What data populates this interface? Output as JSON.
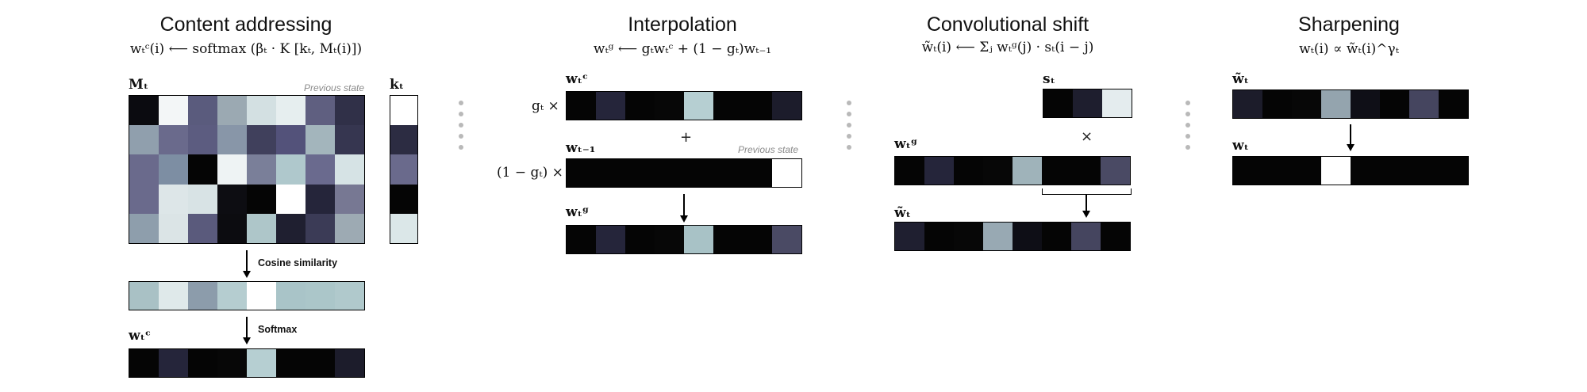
{
  "panels": {
    "content": {
      "title": "Content addressing",
      "formula": "wₜᶜ(i) ⟵ softmax (βₜ · K [kₜ, Mₜ(i)])",
      "memory_label": "Mₜ",
      "key_label": "kₜ",
      "previous_state": "Previous state",
      "cosine_label": "Cosine similarity",
      "softmax_label": "Softmax",
      "output_label": "wₜᶜ",
      "memory_matrix": [
        [
          "#0b0b10",
          "#f3f6f7",
          "#5a5b7d",
          "#9ba9b2",
          "#d3e0e2",
          "#e6eeef",
          "#5f5f80",
          "#303048"
        ],
        [
          "#909fad",
          "#6a6a8c",
          "#5c5c80",
          "#8896a8",
          "#40405c",
          "#53527a",
          "#a3b5bc",
          "#363650"
        ],
        [
          "#6a6a8c",
          "#7d8ea3",
          "#050505",
          "#eef3f4",
          "#7a7f99",
          "#afc8cc",
          "#6a6a8e",
          "#d6e3e5"
        ],
        [
          "#6a6a8c",
          "#dde6e8",
          "#d8e3e5",
          "#0d0d12",
          "#050505",
          "#ffffff",
          "#25253a",
          "#777893"
        ],
        [
          "#8e9eac",
          "#dbe4e6",
          "#5a5a7c",
          "#0c0c10",
          "#aec6c9",
          "#1f1f30",
          "#3b3b56",
          "#9daab3"
        ]
      ],
      "key_vector": [
        "#ffffff",
        "#2c2c42",
        "#6a6a8c",
        "#050505",
        "#dbe7e8"
      ],
      "cosine_strip": [
        "#a9c1c5",
        "#dfe9ea",
        "#8c9cab",
        "#b5cdd0",
        "#ffffff",
        "#a9c4c8",
        "#abc6c9",
        "#b0c9cc"
      ],
      "softmax_strip": [
        "#050505",
        "#25253a",
        "#050505",
        "#070707",
        "#b6cfd2",
        "#050505",
        "#050505",
        "#1c1c2b"
      ]
    },
    "interpolation": {
      "title": "Interpolation",
      "formula": "wₜᵍ ⟵ gₜwₜᶜ + (1 − gₜ)wₜ₋₁",
      "wc_label": "wₜᶜ",
      "gt_label": "gₜ ×",
      "plus": "+",
      "wprev_label": "wₜ₋₁",
      "one_minus_gt_label": "(1 − gₜ) ×",
      "previous_state": "Previous state",
      "wg_label": "wₜᵍ",
      "wc_strip": [
        "#050505",
        "#25253a",
        "#050505",
        "#070707",
        "#b6cfd2",
        "#050505",
        "#050505",
        "#1c1c2b"
      ],
      "prev_strip": [
        "#050505",
        "#050505",
        "#050505",
        "#050505",
        "#050505",
        "#050505",
        "#050505",
        "#ffffff"
      ],
      "wg_strip": [
        "#050505",
        "#25253a",
        "#050505",
        "#070707",
        "#a8c2c6",
        "#050505",
        "#050505",
        "#4a4a64"
      ]
    },
    "shift": {
      "title": "Convolutional shift",
      "formula": "w̃ₜ(i) ⟵ Σⱼ wₜᵍ(j) · sₜ(i − j)",
      "s_label": "sₜ",
      "times": "×",
      "wg_label": "wₜᵍ",
      "wtilde_label": "w̃ₜ",
      "s_strip": [
        "#050505",
        "#1e1e2e",
        "#e4ecee"
      ],
      "wg_strip": [
        "#050505",
        "#25253a",
        "#050505",
        "#070707",
        "#9fb3ba",
        "#050505",
        "#050505",
        "#4a4a64"
      ],
      "wtilde_strip": [
        "#1f1f30",
        "#050505",
        "#070707",
        "#98a9b3",
        "#0e0e16",
        "#050505",
        "#45455f",
        "#050505"
      ]
    },
    "sharpen": {
      "title": "Sharpening",
      "formula": "wₜ(i) ∝ w̃ₜ(i)^γₜ",
      "wtilde_label": "w̃ₜ",
      "w_label": "wₜ",
      "wtilde_strip": [
        "#1c1c2a",
        "#050505",
        "#070707",
        "#94a4ae",
        "#0f0f17",
        "#050505",
        "#45455f",
        "#050505"
      ],
      "w_strip": [
        "#050505",
        "#050505",
        "#050505",
        "#ffffff",
        "#050505",
        "#050505",
        "#050505",
        "#050505"
      ]
    }
  }
}
